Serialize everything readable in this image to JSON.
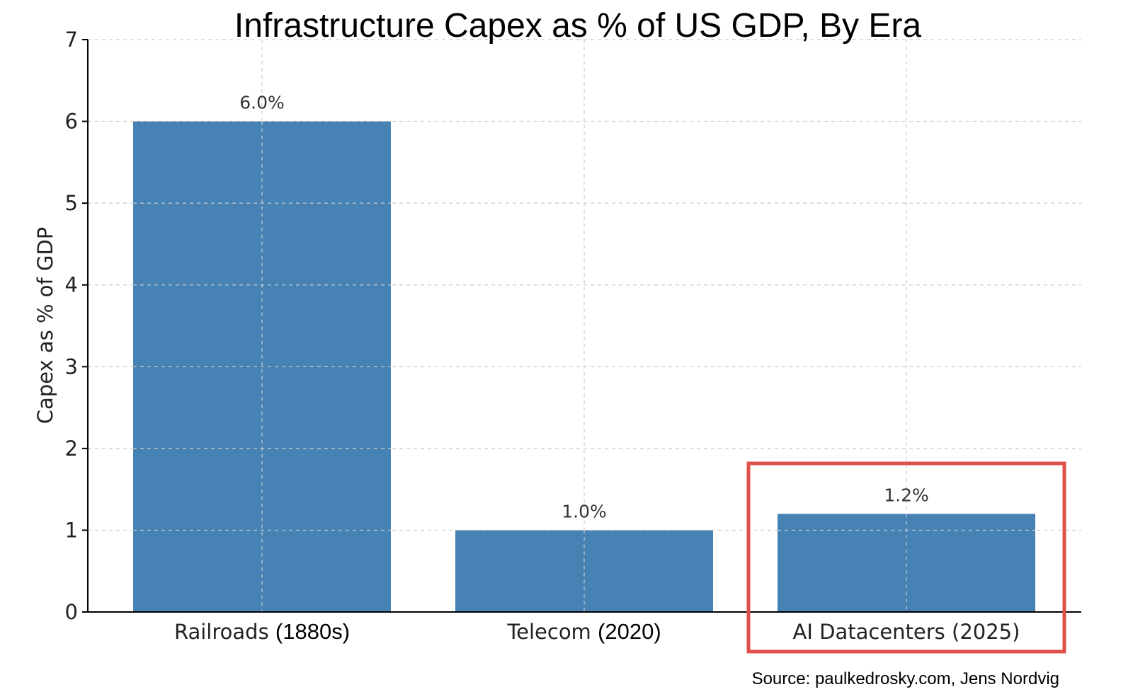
{
  "chart_data": {
    "type": "bar",
    "title": "Infrastructure Capex as % of US GDP, By Era",
    "xlabel": "",
    "ylabel": "Capex as % of GDP",
    "ylim": [
      0,
      7
    ],
    "yticks": [
      "0",
      "1",
      "2",
      "3",
      "4",
      "5",
      "6",
      "7"
    ],
    "categories": [
      {
        "name": "Railroads",
        "period": "(1880s)"
      },
      {
        "name": "Telecom",
        "period": "(2020)"
      },
      {
        "name": "AI Datacenters",
        "period": "(2025)"
      }
    ],
    "values": [
      6.0,
      1.0,
      1.2
    ],
    "data_labels": [
      "6.0%",
      "1.0%",
      "1.2%"
    ],
    "grid": true,
    "highlight_category_index": 2,
    "bar_color": "#4682b4",
    "highlight_color": "#e0504a",
    "source": "Source: paulkedrosky.com, Jens Nordvig"
  }
}
